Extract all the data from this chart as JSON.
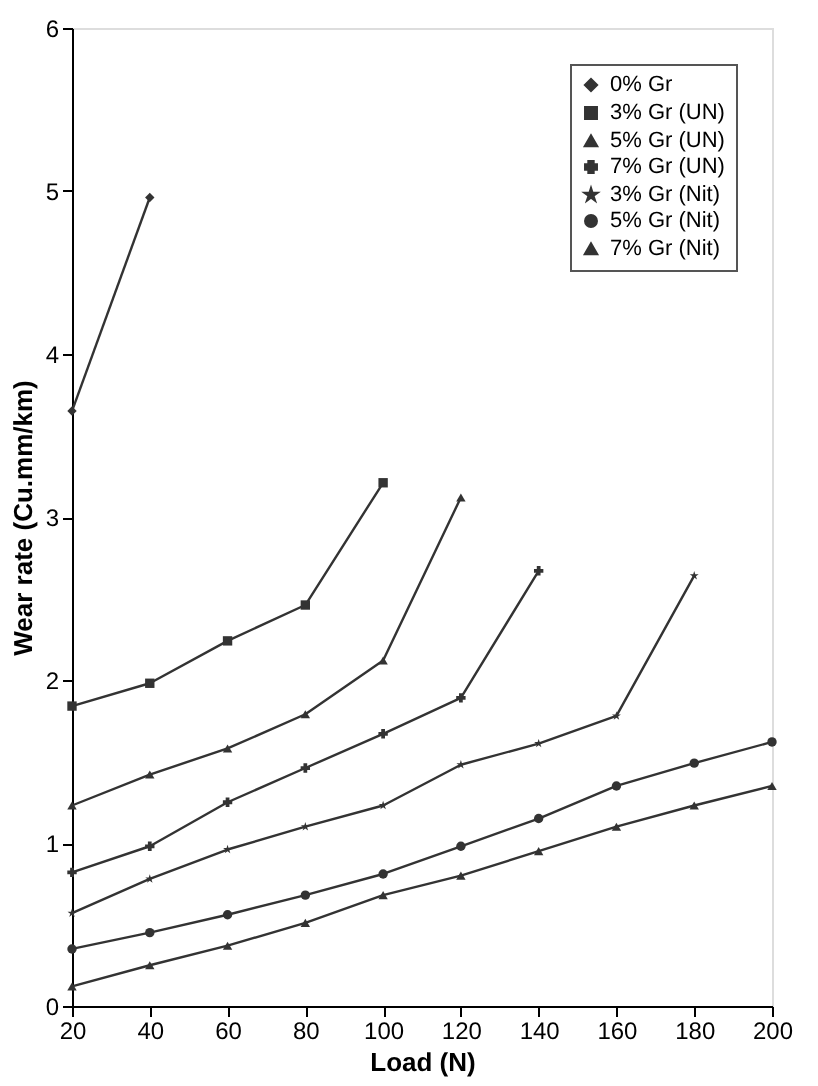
{
  "chart_data": {
    "type": "line",
    "xlabel": "Load (N)",
    "ylabel": "Wear rate (Cu.mm/km)",
    "x": [
      20,
      40,
      60,
      80,
      100,
      120,
      140,
      160,
      180,
      200
    ],
    "xlim": [
      20,
      200
    ],
    "xticks": [
      20,
      40,
      60,
      80,
      100,
      120,
      140,
      160,
      180,
      200
    ],
    "ylim": [
      0,
      6
    ],
    "yticks": [
      0,
      1,
      2,
      3,
      4,
      5,
      6
    ],
    "grid": false,
    "legend": "top right",
    "series": [
      {
        "name": "0% Gr",
        "color": "#333333",
        "marker": "diamond",
        "values": [
          3.65,
          4.96,
          null,
          null,
          null,
          null,
          null,
          null,
          null,
          null
        ]
      },
      {
        "name": "3% Gr (UN)",
        "color": "#333333",
        "marker": "square",
        "values": [
          1.84,
          1.98,
          2.24,
          2.46,
          3.21,
          null,
          null,
          null,
          null,
          null
        ]
      },
      {
        "name": "5% Gr (UN)",
        "color": "#333333",
        "marker": "triangle",
        "values": [
          1.23,
          1.42,
          1.58,
          1.79,
          2.12,
          3.12,
          null,
          null,
          null,
          null
        ]
      },
      {
        "name": "7% Gr (UN)",
        "color": "#333333",
        "marker": "cross",
        "values": [
          0.82,
          0.98,
          1.25,
          1.46,
          1.67,
          1.89,
          2.67,
          null,
          null,
          null
        ]
      },
      {
        "name": "3% Gr (Nit)",
        "color": "#333333",
        "marker": "star",
        "values": [
          0.57,
          0.78,
          0.96,
          1.1,
          1.23,
          1.48,
          1.61,
          1.78,
          2.64,
          null
        ]
      },
      {
        "name": "5% Gr (Nit)",
        "color": "#333333",
        "marker": "circle",
        "values": [
          0.35,
          0.45,
          0.56,
          0.68,
          0.81,
          0.98,
          1.15,
          1.35,
          1.49,
          1.62
        ]
      },
      {
        "name": "7% Gr (Nit)",
        "color": "#333333",
        "marker": "triangle",
        "values": [
          0.12,
          0.25,
          0.37,
          0.51,
          0.68,
          0.8,
          0.95,
          1.1,
          1.23,
          1.35
        ]
      }
    ]
  }
}
